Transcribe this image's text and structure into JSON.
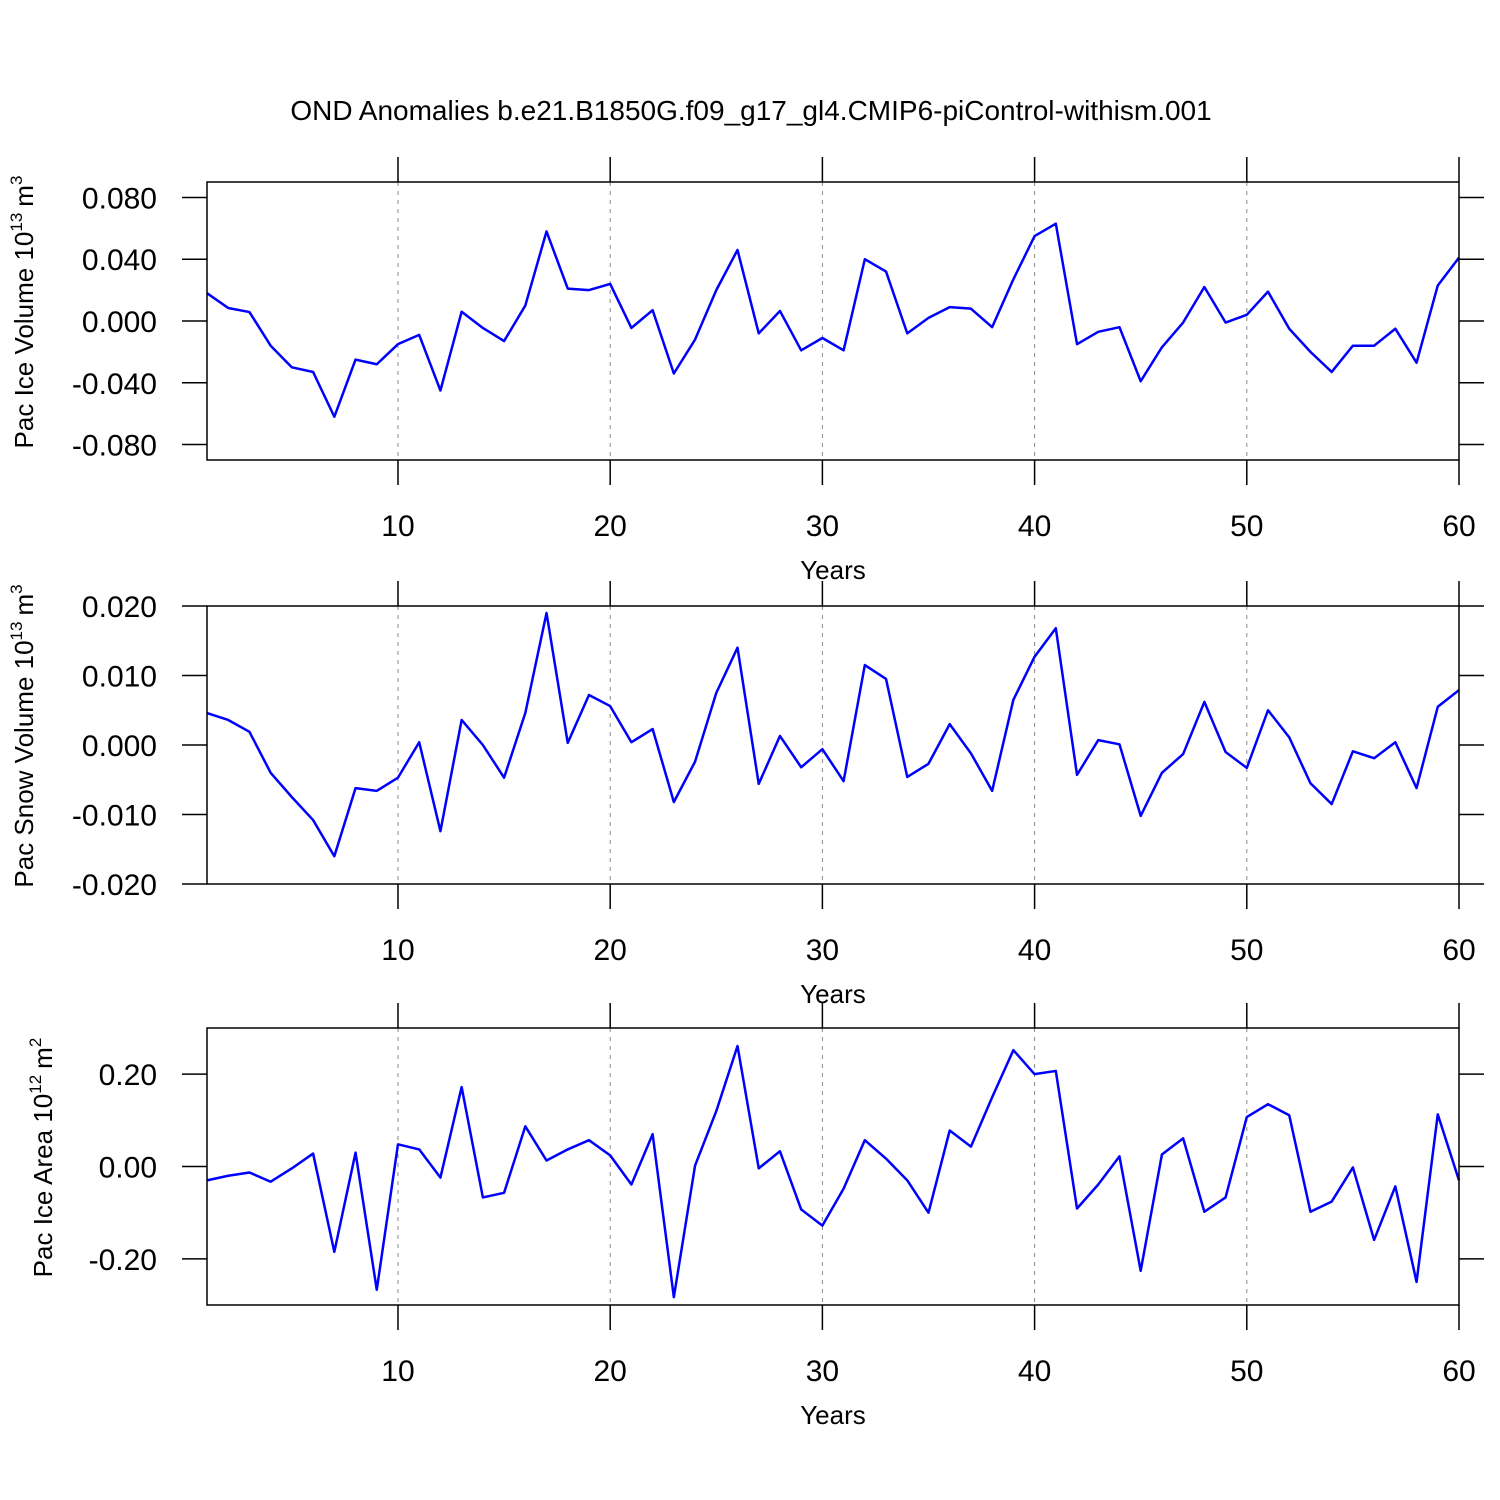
{
  "title": "OND Anomalies b.e21.B1850G.f09_g17_gl4.CMIP6-piControl-withism.001",
  "chart_data": [
    {
      "type": "line",
      "ylabel": [
        "Pac Ice Volume 10",
        "13",
        "m",
        "3"
      ],
      "xlabel": "Years",
      "x": [
        1,
        2,
        3,
        4,
        5,
        6,
        7,
        8,
        9,
        10,
        11,
        12,
        13,
        14,
        15,
        16,
        17,
        18,
        19,
        20,
        21,
        22,
        23,
        24,
        25,
        26,
        27,
        28,
        29,
        30,
        31,
        32,
        33,
        34,
        35,
        36,
        37,
        38,
        39,
        40,
        41,
        42,
        43,
        44,
        45,
        46,
        47,
        48,
        49,
        50,
        51,
        52,
        53,
        54,
        55,
        56,
        57,
        58,
        59,
        60
      ],
      "series": [
        {
          "color": "#0000ff",
          "values": [
            0.018,
            0.0084,
            0.0058,
            -0.016,
            -0.03,
            -0.033,
            -0.062,
            -0.025,
            -0.028,
            -0.015,
            -0.009,
            -0.045,
            0.006,
            -0.0045,
            -0.013,
            0.01,
            0.058,
            0.021,
            0.02,
            0.024,
            -0.0045,
            0.007,
            -0.034,
            -0.012,
            0.02,
            0.046,
            -0.008,
            0.0065,
            -0.019,
            -0.011,
            -0.019,
            0.04,
            0.032,
            -0.008,
            0.002,
            0.009,
            0.008,
            -0.004,
            0.027,
            0.055,
            0.063,
            -0.015,
            -0.007,
            -0.004,
            -0.039,
            -0.017,
            -0.001,
            0.022,
            -0.001,
            0.004,
            0.019,
            -0.005,
            -0.02,
            -0.033,
            -0.016,
            -0.016,
            -0.005,
            -0.027,
            0.023,
            0.041
          ]
        }
      ],
      "xlim": [
        1,
        60
      ],
      "xticks": [
        10,
        20,
        30,
        40,
        50,
        60
      ],
      "xgrid": true,
      "ylim": [
        -0.09,
        0.09
      ],
      "yticks": [
        {
          "value": 0.08,
          "label": "0.080"
        },
        {
          "value": 0.04,
          "label": "0.040"
        },
        {
          "value": 0,
          "label": "0.000"
        },
        {
          "value": -0.04,
          "label": "-0.040"
        },
        {
          "value": -0.08,
          "label": "-0.080"
        }
      ]
    },
    {
      "type": "line",
      "ylabel": [
        "Pac Snow Volume 10",
        "13",
        "m",
        "3"
      ],
      "xlabel": "Years",
      "x": [
        1,
        2,
        3,
        4,
        5,
        6,
        7,
        8,
        9,
        10,
        11,
        12,
        13,
        14,
        15,
        16,
        17,
        18,
        19,
        20,
        21,
        22,
        23,
        24,
        25,
        26,
        27,
        28,
        29,
        30,
        31,
        32,
        33,
        34,
        35,
        36,
        37,
        38,
        39,
        40,
        41,
        42,
        43,
        44,
        45,
        46,
        47,
        48,
        49,
        50,
        51,
        52,
        53,
        54,
        55,
        56,
        57,
        58,
        59,
        60
      ],
      "series": [
        {
          "color": "#0000ff",
          "values": [
            0.0046,
            0.0036,
            0.0019,
            -0.004,
            -0.0075,
            -0.0108,
            -0.016,
            -0.0062,
            -0.0066,
            -0.0047,
            0.0004,
            -0.0124,
            0.0036,
            0,
            -0.0047,
            0.0046,
            0.019,
            0.0003,
            0.0072,
            0.0056,
            0.0004,
            0.0023,
            -0.0082,
            -0.0024,
            0.0075,
            0.014,
            -0.0056,
            0.0013,
            -0.0032,
            -0.0006,
            -0.0052,
            0.0115,
            0.0095,
            -0.0046,
            -0.0027,
            0.003,
            -0.0012,
            -0.0066,
            0.0065,
            0.0127,
            0.0168,
            -0.0043,
            0.0007,
            0.0001,
            -0.0102,
            -0.004,
            -0.0013,
            0.0062,
            -0.001,
            -0.0033,
            0.005,
            0.0011,
            -0.0055,
            -0.0085,
            -0.0009,
            -0.0019,
            0.0004,
            -0.0062,
            0.0055,
            0.0079
          ]
        }
      ],
      "xlim": [
        1,
        60
      ],
      "xticks": [
        10,
        20,
        30,
        40,
        50,
        60
      ],
      "xgrid": true,
      "ylim": [
        -0.02,
        0.02
      ],
      "yticks": [
        {
          "value": 0.02,
          "label": "0.020"
        },
        {
          "value": 0.01,
          "label": "0.010"
        },
        {
          "value": 0,
          "label": "0.000"
        },
        {
          "value": -0.01,
          "label": "-0.010"
        },
        {
          "value": -0.02,
          "label": "-0.020"
        }
      ]
    },
    {
      "type": "line",
      "ylabel": [
        "Pac Ice Area 10",
        "12",
        "m",
        "2"
      ],
      "xlabel": "Years",
      "x": [
        1,
        2,
        3,
        4,
        5,
        6,
        7,
        8,
        9,
        10,
        11,
        12,
        13,
        14,
        15,
        16,
        17,
        18,
        19,
        20,
        21,
        22,
        23,
        24,
        25,
        26,
        27,
        28,
        29,
        30,
        31,
        32,
        33,
        34,
        35,
        36,
        37,
        38,
        39,
        40,
        41,
        42,
        43,
        44,
        45,
        46,
        47,
        48,
        49,
        50,
        51,
        52,
        53,
        54,
        55,
        56,
        57,
        58,
        59,
        60
      ],
      "series": [
        {
          "color": "#0000ff",
          "values": [
            -0.03,
            -0.02,
            -0.013,
            -0.033,
            -0.004,
            0.028,
            -0.185,
            0.03,
            -0.267,
            0.048,
            0.037,
            -0.024,
            0.172,
            -0.067,
            -0.057,
            0.087,
            0.013,
            0.037,
            0.057,
            0.024,
            -0.039,
            0.07,
            -0.283,
            0.002,
            0.12,
            0.261,
            -0.004,
            0.033,
            -0.093,
            -0.128,
            -0.048,
            0.057,
            0.017,
            -0.03,
            -0.1,
            0.078,
            0.043,
            0.15,
            0.252,
            0.2,
            0.207,
            -0.091,
            -0.039,
            0.022,
            -0.226,
            0.026,
            0.061,
            -0.098,
            -0.067,
            0.107,
            0.135,
            0.111,
            -0.098,
            -0.076,
            -0.002,
            -0.159,
            -0.043,
            -0.25,
            0.113,
            -0.03
          ]
        }
      ],
      "xlim": [
        1,
        60
      ],
      "xticks": [
        10,
        20,
        30,
        40,
        50,
        60
      ],
      "xgrid": true,
      "ylim": [
        -0.3,
        0.3
      ],
      "yticks": [
        {
          "value": 0.2,
          "label": "0.20"
        },
        {
          "value": 0,
          "label": "0.00"
        },
        {
          "value": -0.2,
          "label": "-0.20"
        }
      ]
    }
  ]
}
